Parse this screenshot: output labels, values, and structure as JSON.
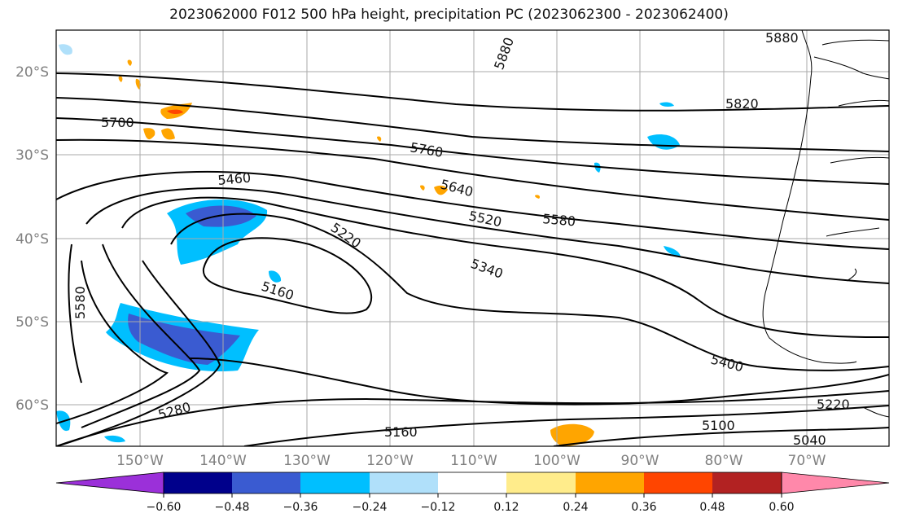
{
  "title": "2023062000 F012 500 hPa height, precipitation PC (2023062300 - 2023062400)",
  "map": {
    "lat_labels": [
      "20°S",
      "30°S",
      "40°S",
      "50°S",
      "60°S"
    ],
    "lon_labels": [
      "150°W",
      "140°W",
      "130°W",
      "120°W",
      "110°W",
      "100°W",
      "90°W",
      "80°W",
      "70°W"
    ],
    "contour_labels": [
      "5880",
      "5880",
      "5820",
      "5700",
      "5760",
      "5460",
      "5640",
      "5520",
      "5580",
      "5220",
      "5340",
      "5160",
      "5580",
      "5400",
      "5220",
      "5280",
      "5160",
      "5100",
      "5040"
    ]
  },
  "colorbar": {
    "ticks": [
      "−0.60",
      "−0.48",
      "−0.36",
      "−0.24",
      "−0.12",
      "0.12",
      "0.24",
      "0.36",
      "0.48",
      "0.60"
    ],
    "colors": [
      "#9b30d9",
      "#00008b",
      "#3a5bd1",
      "#00bfff",
      "#b0e0fa",
      "#ffffff",
      "#ffec8b",
      "#ffa500",
      "#ff4500",
      "#b22222",
      "#ff88aa"
    ]
  }
}
